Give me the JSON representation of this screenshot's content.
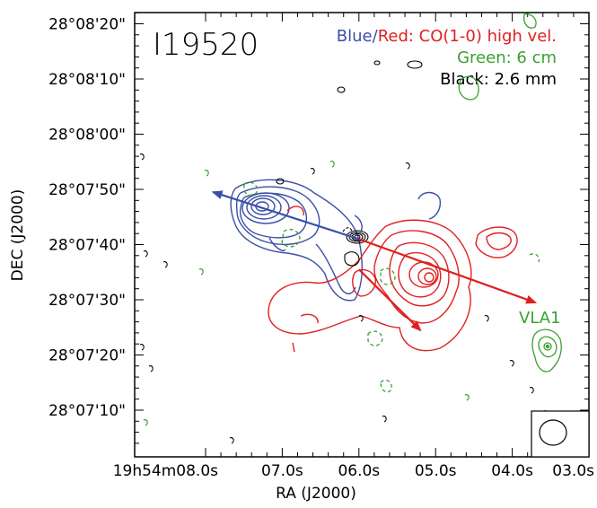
{
  "chart_data": {
    "type": "contour",
    "title": "I19520",
    "legend": {
      "blue": "Blue",
      "slash": "/",
      "red": "Red: CO(1-0) high vel.",
      "green": "Green: 6 cm",
      "black": "Black: 2.6 mm"
    },
    "xlabel": "RA (J2000)",
    "ylabel": "DEC (J2000)",
    "xlim": [
      8.0,
      3.0
    ],
    "ylim": [
      0,
      80
    ],
    "x_ticks": [
      {
        "v": 8.0,
        "t": "19h54m08.0s"
      },
      {
        "v": 7.0,
        "t": "07.0s"
      },
      {
        "v": 6.0,
        "t": "06.0s"
      },
      {
        "v": 5.0,
        "t": "05.0s"
      },
      {
        "v": 4.0,
        "t": "04.0s"
      },
      {
        "v": 3.0,
        "t": "03.0s"
      }
    ],
    "y_ticks": [
      {
        "v": 10,
        "t": "28°07'10\""
      },
      {
        "v": 20,
        "t": "28°07'20\""
      },
      {
        "v": 30,
        "t": "28°07'30\""
      },
      {
        "v": 40,
        "t": "28°07'40\""
      },
      {
        "v": 50,
        "t": "28°07'50\""
      },
      {
        "v": 60,
        "t": "28°08'00\""
      },
      {
        "v": 70,
        "t": "28°08'10\""
      },
      {
        "v": 80,
        "t": "28°08'20\""
      }
    ],
    "annotation": "VLA1",
    "colors": {
      "blue": "#3a50a8",
      "red": "#e02020",
      "green": "#3aa030",
      "black": "#000000"
    },
    "outflow_arrows": [
      {
        "color": "blue",
        "from": [
          6.0,
          41
        ],
        "to": [
          7.9,
          49.5
        ]
      },
      {
        "color": "red",
        "from": [
          6.0,
          41
        ],
        "to": [
          3.7,
          29.5
        ]
      },
      {
        "color": "red",
        "from": [
          6.0,
          35.5
        ],
        "to": [
          5.2,
          24.5
        ]
      }
    ]
  }
}
